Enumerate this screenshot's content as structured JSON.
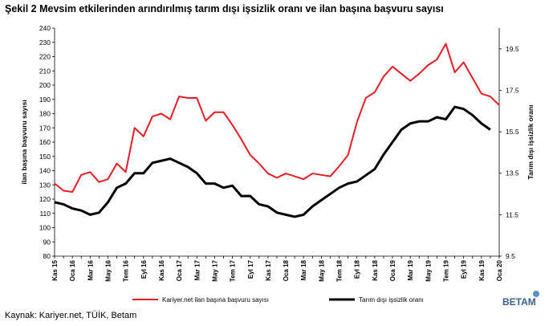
{
  "chart_data": {
    "type": "line",
    "title": "Şekil 2 Mevsim etkilerinden arındırılmış tarım dışı işsizlik oranı ve ilan başına başvuru sayısı",
    "y_label": "ilan başına başvuru sayısı",
    "y2_label": "Tarım dışı işsizlik oranı",
    "source": "Kaynak: Kariyer.net, TÜİK, Betam",
    "logo": "BETAM",
    "categories": [
      "Kas 15",
      null,
      "Oca 16",
      null,
      "Mar 16",
      null,
      "May 16",
      null,
      "Tem 16",
      null,
      "Eyl 16",
      null,
      "Kas 16",
      null,
      "Oca 17",
      null,
      "Mar 17",
      null,
      "May 17",
      null,
      "Tem 17",
      null,
      "Eyl 17",
      null,
      "Kas 17",
      null,
      "Oca 18",
      null,
      "Mar 18",
      null,
      "May 18",
      null,
      "Tem 18",
      null,
      "Eyl 18",
      null,
      "Kas 18",
      null,
      "Oca 19",
      null,
      "Mar 19",
      null,
      "May 19",
      null,
      "Tem 19",
      null,
      "Eyl 19",
      null,
      "Kas 19",
      null,
      "Oca 20"
    ],
    "series": [
      {
        "name": "Kariyer.net ilan başına başvuru sayısı",
        "color": "#e41e26",
        "axis": "y",
        "values": [
          131,
          126,
          125,
          137,
          139,
          132,
          134,
          145,
          139,
          170,
          164,
          178,
          180,
          176,
          192,
          191,
          191,
          175,
          181,
          181,
          172,
          162,
          151,
          145,
          138,
          135,
          138,
          136,
          134,
          138,
          137,
          136,
          143,
          151,
          174,
          191,
          195,
          206,
          213,
          208,
          203,
          208,
          214,
          218,
          229,
          209,
          216,
          205,
          194,
          192,
          186
        ]
      },
      {
        "name": "Tarım dışı işsizlik oranı",
        "color": "#000000",
        "axis": "y2",
        "values": [
          12.1,
          12.0,
          11.8,
          11.7,
          11.5,
          11.6,
          12.1,
          12.8,
          13.0,
          13.5,
          13.5,
          14.0,
          14.1,
          14.2,
          14.0,
          13.8,
          13.5,
          13.0,
          13.0,
          12.8,
          12.9,
          12.4,
          12.4,
          12.0,
          11.9,
          11.6,
          11.5,
          11.4,
          11.5,
          11.9,
          12.2,
          12.5,
          12.8,
          13.0,
          13.1,
          13.4,
          13.7,
          14.4,
          15.0,
          15.6,
          15.9,
          16.0,
          16.0,
          16.2,
          16.1,
          16.7,
          16.6,
          16.3,
          15.9,
          15.6,
          null
        ]
      }
    ],
    "ylim": [
      80,
      240
    ],
    "yticks": [
      80,
      90,
      100,
      110,
      120,
      130,
      140,
      150,
      160,
      170,
      180,
      190,
      200,
      210,
      220,
      230,
      240
    ],
    "y2lim": [
      9.5,
      20.5
    ],
    "y2ticks": [
      9.5,
      11.5,
      13.5,
      15.5,
      17.5,
      19.5
    ],
    "grid": false,
    "legend": "bottom"
  }
}
